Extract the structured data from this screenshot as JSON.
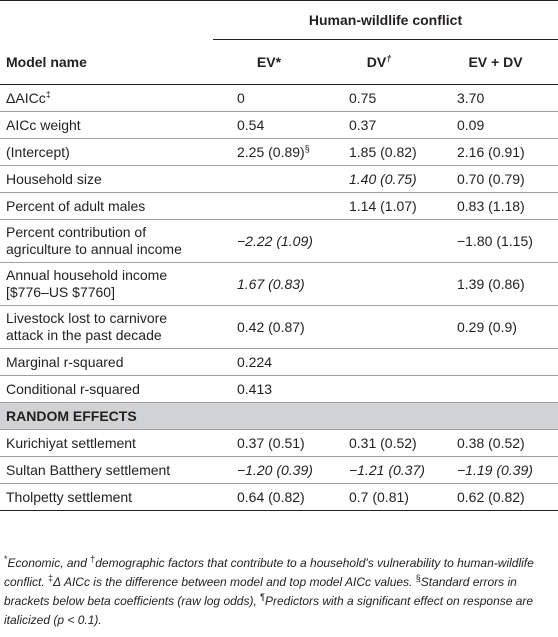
{
  "table": {
    "group_header": "Human-wildlife conflict",
    "columns": {
      "model_name": "Model name",
      "ev": "EV",
      "ev_mark": "*",
      "dv": "DV",
      "dv_mark": "†",
      "ev_dv": "EV + DV"
    },
    "rows": [
      {
        "name": "ΔAICc",
        "name_mark": "‡",
        "ev": "0",
        "dv": "0.75",
        "evdv": "3.70"
      },
      {
        "name": "AICc weight",
        "ev": "0.54",
        "dv": "0.37",
        "evdv": "0.09"
      },
      {
        "name": "(Intercept)",
        "ev": "2.25 (0.89)",
        "ev_mark": "§",
        "dv": "1.85 (0.82)",
        "evdv": "2.16 (0.91)"
      },
      {
        "name": "Household size",
        "ev": "",
        "dv": "1.40 (0.75)",
        "evdv": "0.70 (0.79)"
      },
      {
        "name": "Percent of adult males",
        "ev": "",
        "dv": "1.14 (1.07)",
        "evdv": "0.83 (1.18)"
      },
      {
        "name_l1": "Percent contribution of",
        "name_l2": "agriculture to annual income",
        "ev": "−2.22 (1.09)",
        "dv": "",
        "evdv": "−1.80 (1.15)"
      },
      {
        "name_l1": "Annual household income",
        "name_l2": "[$776–US $7760]",
        "ev": "1.67 (0.83)",
        "dv": "",
        "evdv": "1.39 (0.86)"
      },
      {
        "name_l1": "Livestock lost to carnivore",
        "name_l2": "attack in the past decade",
        "ev": "0.42 (0.87)",
        "dv": "",
        "evdv": "0.29 (0.9)"
      },
      {
        "name": "Marginal r-squared",
        "ev": "0.224",
        "dv": "",
        "evdv": ""
      },
      {
        "name": "Conditional r-squared",
        "ev": "0.413",
        "dv": "",
        "evdv": ""
      }
    ],
    "random_effects_label": "RANDOM EFFECTS",
    "random_rows": [
      {
        "name": "Kurichiyat settlement",
        "ev": "0.37 (0.51)",
        "dv": "0.31 (0.52)",
        "evdv": "0.38 (0.52)"
      },
      {
        "name": "Sultan Batthery settlement",
        "ev": "−1.20 (0.39)",
        "dv": "−1.21 (0.37)",
        "evdv": "−1.19 (0.39)"
      },
      {
        "name": "Tholpetty settlement",
        "ev": "0.64 (0.82)",
        "dv": "0.7 (0.81)",
        "evdv": "0.62 (0.82)"
      }
    ]
  },
  "footnote": {
    "m1": "*",
    "t1": "Economic, and ",
    "m2": "†",
    "t2": "demographic factors that contribute to a household's vulnerability to human-wildlife conflict. ",
    "m3": "‡",
    "t3": "Δ AICc is the difference between model and top model AICc values. ",
    "m4": "§",
    "t4": "Standard errors in brackets below beta coefficients (raw log odds), ",
    "m5": "¶",
    "t5": "Predictors with a significant effect on response are italicized (p < 0.1)."
  }
}
